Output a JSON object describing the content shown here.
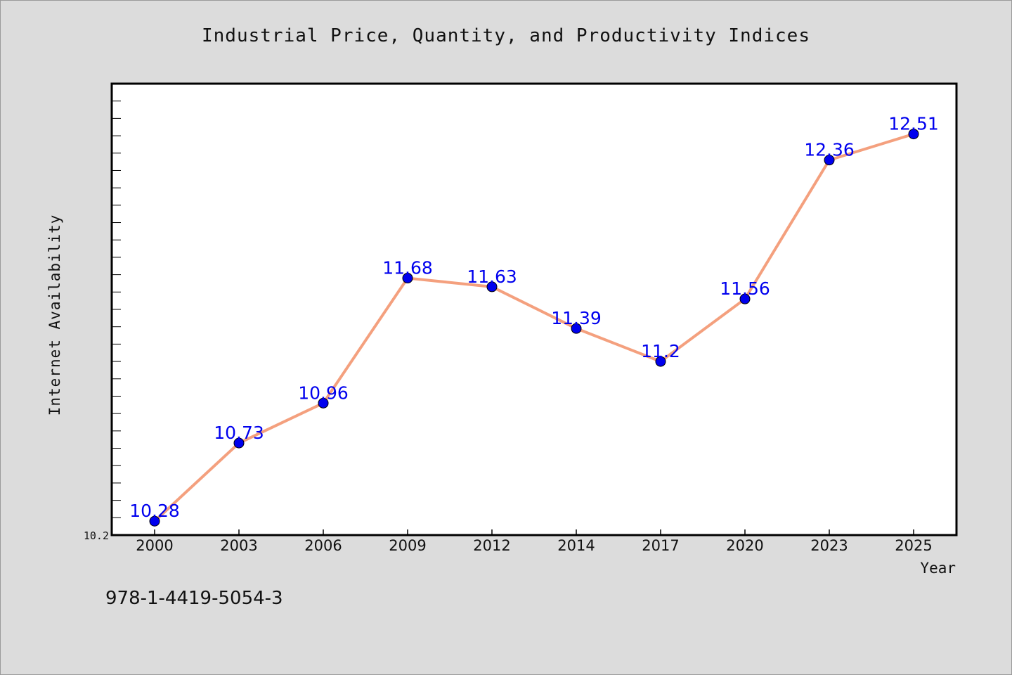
{
  "chart_data": {
    "type": "line",
    "title": "Industrial Price, Quantity, and Productivity Indices",
    "xlabel": "Year",
    "ylabel": "Internet Availability",
    "categories": [
      "2000",
      "2003",
      "2006",
      "2009",
      "2012",
      "2014",
      "2017",
      "2020",
      "2023",
      "2025"
    ],
    "series": [
      {
        "values": [
          10.28,
          10.73,
          10.96,
          11.68,
          11.63,
          11.39,
          11.2,
          11.56,
          12.36,
          12.51
        ]
      }
    ],
    "point_labels": [
      "10.28",
      "10.73",
      "10.96",
      "11.68",
      "11.63",
      "11.39",
      "11.2",
      "11.56",
      "12.36",
      "12.51"
    ],
    "ylim": [
      10.2,
      12.8
    ],
    "ytick_labels": [
      "10.2"
    ],
    "grid": false,
    "line_color": "#f4a07e",
    "marker_color": "#0000ee",
    "label_color": "#0000ee"
  },
  "footer": {
    "isbn": "978-1-4419-5054-3"
  }
}
